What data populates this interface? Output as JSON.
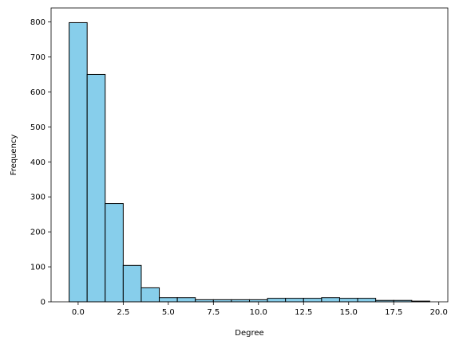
{
  "chart_data": {
    "type": "bar",
    "title": "",
    "xlabel": "Degree",
    "ylabel": "Frequency",
    "bins": [
      {
        "x0": -0.5,
        "x1": 0.5,
        "value": 798
      },
      {
        "x0": 0.5,
        "x1": 1.5,
        "value": 650
      },
      {
        "x0": 1.5,
        "x1": 2.5,
        "value": 281
      },
      {
        "x0": 2.5,
        "x1": 3.5,
        "value": 104
      },
      {
        "x0": 3.5,
        "x1": 4.5,
        "value": 40
      },
      {
        "x0": 4.5,
        "x1": 5.5,
        "value": 12
      },
      {
        "x0": 5.5,
        "x1": 6.5,
        "value": 12
      },
      {
        "x0": 6.5,
        "x1": 7.5,
        "value": 6
      },
      {
        "x0": 7.5,
        "x1": 8.5,
        "value": 6
      },
      {
        "x0": 8.5,
        "x1": 9.5,
        "value": 6
      },
      {
        "x0": 9.5,
        "x1": 10.5,
        "value": 6
      },
      {
        "x0": 10.5,
        "x1": 11.5,
        "value": 10
      },
      {
        "x0": 11.5,
        "x1": 12.5,
        "value": 10
      },
      {
        "x0": 12.5,
        "x1": 13.5,
        "value": 10
      },
      {
        "x0": 13.5,
        "x1": 14.5,
        "value": 12
      },
      {
        "x0": 14.5,
        "x1": 15.5,
        "value": 10
      },
      {
        "x0": 15.5,
        "x1": 16.5,
        "value": 10
      },
      {
        "x0": 16.5,
        "x1": 17.5,
        "value": 4
      },
      {
        "x0": 17.5,
        "x1": 18.5,
        "value": 4
      },
      {
        "x0": 18.5,
        "x1": 19.5,
        "value": 2
      }
    ],
    "xlim": [
      -1.5,
      20.5
    ],
    "ylim": [
      0,
      840
    ],
    "xticks": [
      0.0,
      2.5,
      5.0,
      7.5,
      10.0,
      12.5,
      15.0,
      17.5,
      20.0
    ],
    "xtick_labels": [
      "0.0",
      "2.5",
      "5.0",
      "7.5",
      "10.0",
      "12.5",
      "15.0",
      "17.5",
      "20.0"
    ],
    "yticks": [
      0,
      100,
      200,
      300,
      400,
      500,
      600,
      700,
      800
    ],
    "ytick_labels": [
      "0",
      "100",
      "200",
      "300",
      "400",
      "500",
      "600",
      "700",
      "800"
    ],
    "grid": false,
    "colors": {
      "bar_fill": "#87CEEB",
      "bar_edge": "#000000"
    }
  }
}
